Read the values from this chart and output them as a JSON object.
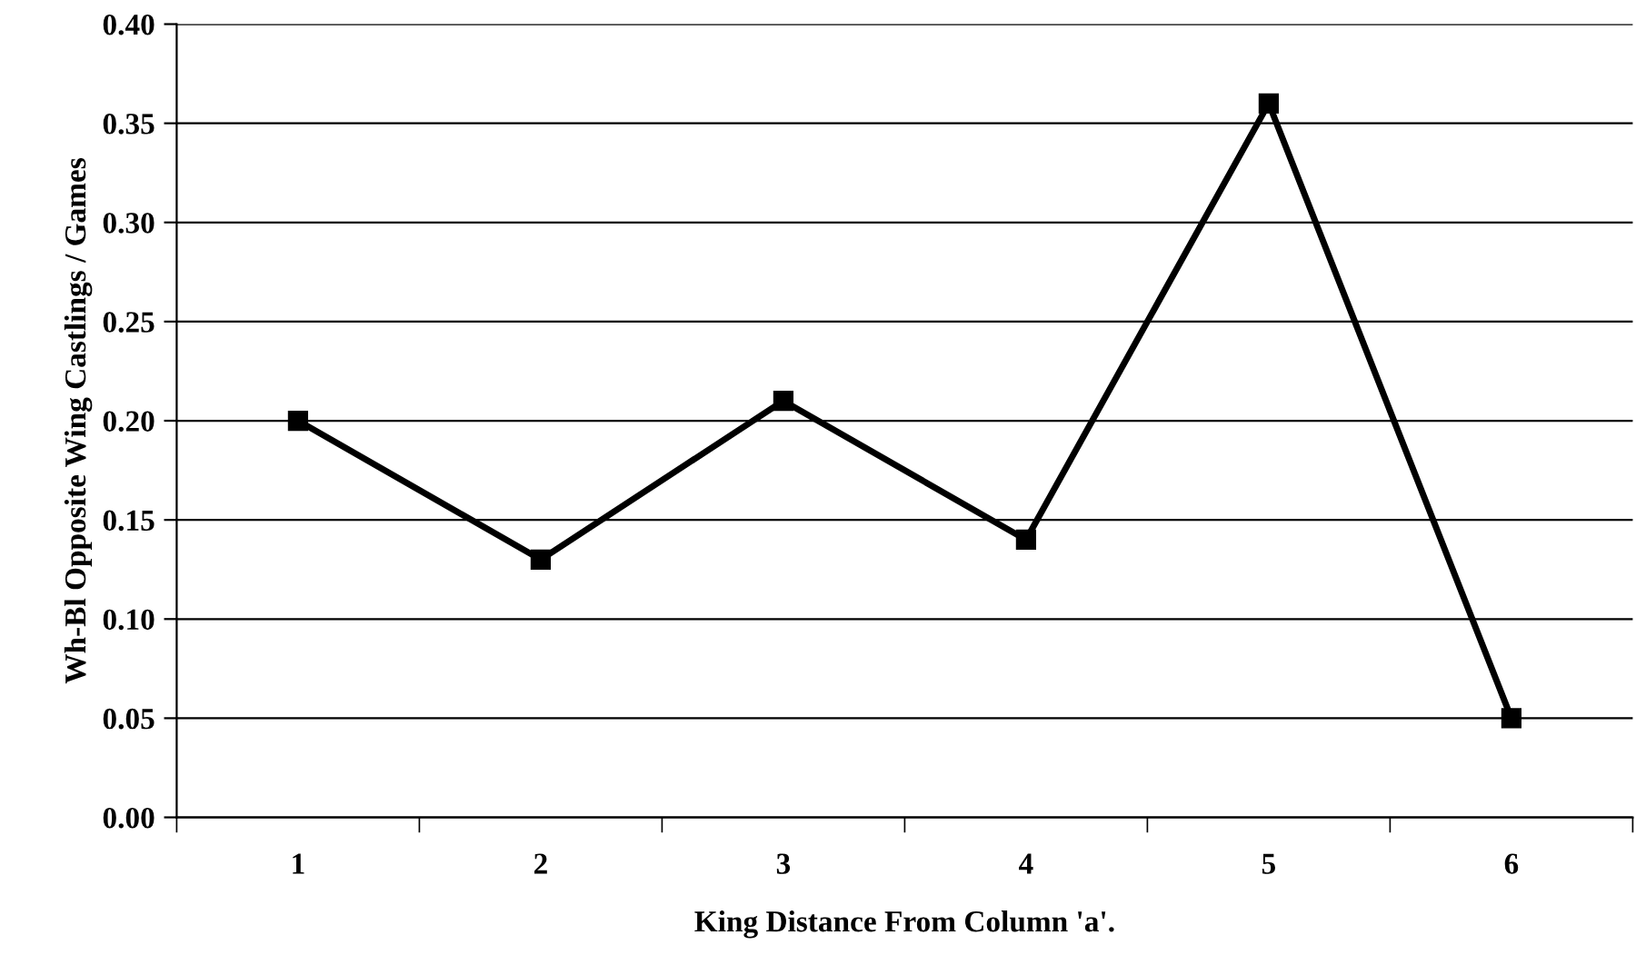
{
  "chart_data": {
    "type": "line",
    "xlabel": "King Distance From Column 'a'.",
    "ylabel": "Wh-Bl Opposite Wing Castlings / Games",
    "categories": [
      "1",
      "2",
      "3",
      "4",
      "5",
      "6"
    ],
    "series": [
      {
        "color": "#000000",
        "values": [
          0.2,
          0.13,
          0.21,
          0.14,
          0.36,
          0.05
        ]
      }
    ],
    "ylim": [
      0,
      0.4
    ],
    "yticks": [
      {
        "value": 0,
        "label": "0.00"
      },
      {
        "value": 0.05,
        "label": "0.05"
      },
      {
        "value": 0.1,
        "label": "0.10"
      },
      {
        "value": 0.15,
        "label": "0.15"
      },
      {
        "value": 0.2,
        "label": "0.20"
      },
      {
        "value": 0.25,
        "label": "0.25"
      },
      {
        "value": 0.3,
        "label": "0.30"
      },
      {
        "value": 0.35,
        "label": "0.35"
      },
      {
        "value": 0.4,
        "label": "0.40"
      }
    ],
    "grid": "y",
    "marker": "square",
    "line_style": "solid",
    "legend": false
  }
}
